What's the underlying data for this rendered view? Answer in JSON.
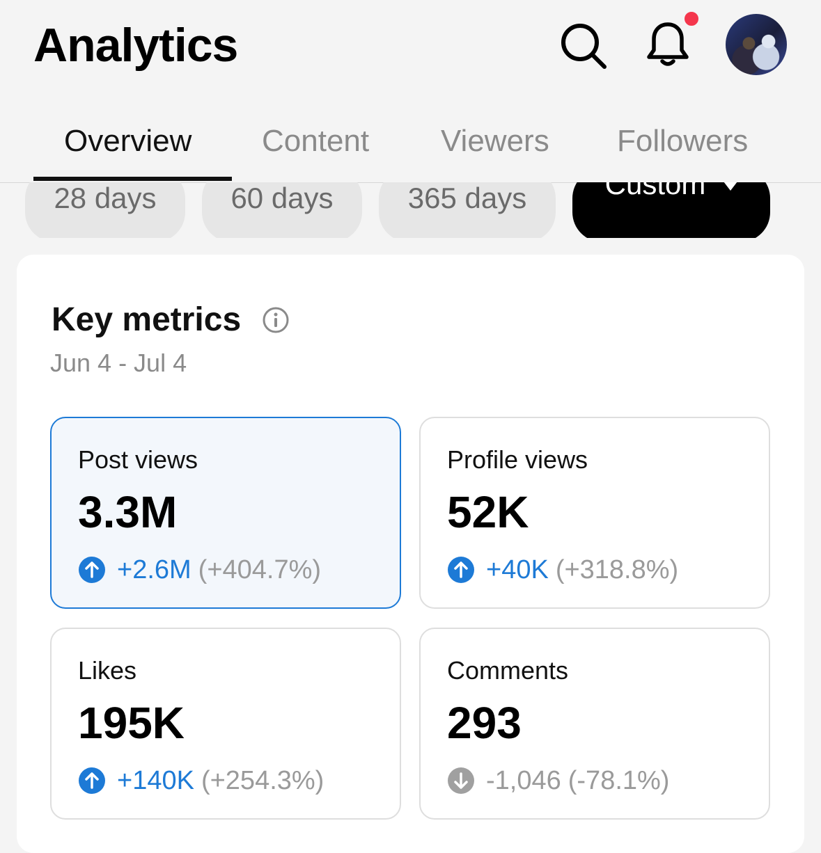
{
  "header": {
    "title": "Analytics",
    "icons": [
      "search-icon",
      "bell-icon",
      "avatar"
    ],
    "has_notification": true
  },
  "tabs": [
    {
      "label": "Overview",
      "active": true
    },
    {
      "label": "Content",
      "active": false
    },
    {
      "label": "Viewers",
      "active": false
    },
    {
      "label": "Followers",
      "active": false
    }
  ],
  "ranges": [
    {
      "label": "28 days",
      "active": false
    },
    {
      "label": "60 days",
      "active": false
    },
    {
      "label": "365 days",
      "active": false
    },
    {
      "label": "Custom",
      "active": true
    }
  ],
  "key_metrics": {
    "title": "Key metrics",
    "date_range": "Jun 4 - Jul 4",
    "tiles": [
      {
        "label": "Post views",
        "value": "3.3M",
        "change": "+2.6M",
        "percent": "(+404.7%)",
        "direction": "up",
        "selected": true
      },
      {
        "label": "Profile views",
        "value": "52K",
        "change": "+40K",
        "percent": "(+318.8%)",
        "direction": "up",
        "selected": false
      },
      {
        "label": "Likes",
        "value": "195K",
        "change": "+140K",
        "percent": "(+254.3%)",
        "direction": "up",
        "selected": false
      },
      {
        "label": "Comments",
        "value": "293",
        "change": "-1,046",
        "percent": "(-78.1%)",
        "direction": "down",
        "selected": false
      }
    ]
  },
  "colors": {
    "accent": "#1d7ad6",
    "notification": "#f4364c",
    "muted": "#9a9a9a"
  }
}
